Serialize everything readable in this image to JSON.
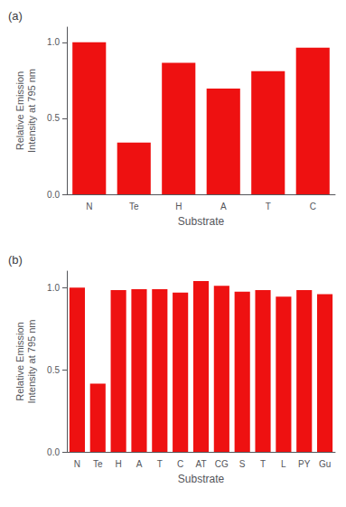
{
  "chart_data": [
    {
      "type": "bar",
      "title": "(a)",
      "categories": [
        "N",
        "Te",
        "H",
        "A",
        "T",
        "C"
      ],
      "values": [
        1.0,
        0.34,
        0.865,
        0.695,
        0.81,
        0.965
      ],
      "ylabel": "Relative Emission\nIntensity at 795 nm",
      "xlabel": "Substrate",
      "color": "#EE1111",
      "ylim": [
        0.0,
        1.1
      ],
      "yticks": [
        {
          "value": 0.0,
          "label": "0.0"
        },
        {
          "value": 0.5,
          "label": "0.5"
        },
        {
          "value": 1.0,
          "label": "1.0"
        }
      ],
      "grid": false
    },
    {
      "type": "bar",
      "title": "(b)",
      "categories": [
        "N",
        "Te",
        "H",
        "A",
        "T",
        "C",
        "AT",
        "CG",
        "S",
        "T",
        "L",
        "PY",
        "Gu"
      ],
      "values": [
        1.0,
        0.415,
        0.985,
        0.99,
        0.99,
        0.97,
        1.04,
        1.01,
        0.975,
        0.985,
        0.945,
        0.985,
        0.96
      ],
      "ylabel": "Relative Emission\nIntensity at 795 nm",
      "xlabel": "Substrate",
      "color": "#EE1111",
      "ylim": [
        0.0,
        1.1
      ],
      "yticks": [
        {
          "value": 0.0,
          "label": "0.0"
        },
        {
          "value": 0.5,
          "label": "0.5"
        },
        {
          "value": 1.0,
          "label": "1.0"
        }
      ],
      "grid": false
    }
  ]
}
